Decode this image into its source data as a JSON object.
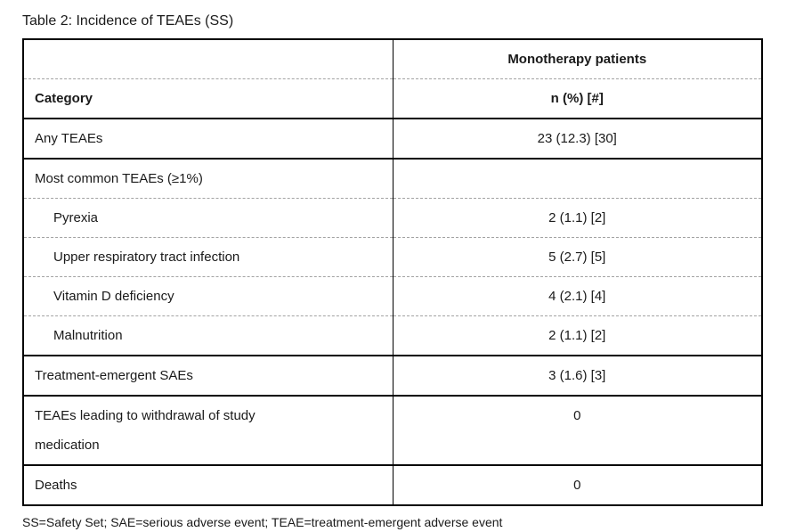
{
  "title": "Table 2: Incidence of TEAEs (SS)",
  "table": {
    "header": {
      "group_label": "Monotherapy patients",
      "category_label": "Category",
      "value_label": "n (%) [#]"
    },
    "rows": [
      {
        "category": "Any TEAEs",
        "value": "23 (12.3) [30]",
        "indent": false,
        "border_bottom": "solid"
      },
      {
        "category": "Most common TEAEs (≥1%)",
        "value": "",
        "indent": false,
        "border_bottom": "dashed"
      },
      {
        "category": "Pyrexia",
        "value": "2 (1.1) [2]",
        "indent": true,
        "border_bottom": "dashed"
      },
      {
        "category": "Upper respiratory tract infection",
        "value": "5 (2.7) [5]",
        "indent": true,
        "border_bottom": "dashed"
      },
      {
        "category": "Vitamin D deficiency",
        "value": "4 (2.1) [4]",
        "indent": true,
        "border_bottom": "dashed"
      },
      {
        "category": "Malnutrition",
        "value": "2 (1.1) [2]",
        "indent": true,
        "border_bottom": "solid"
      },
      {
        "category": "Treatment-emergent SAEs",
        "value": "3 (1.6) [3]",
        "indent": false,
        "border_bottom": "solid"
      },
      {
        "category": "TEAEs leading to withdrawal of study medication",
        "value": "0",
        "indent": false,
        "border_bottom": "solid"
      },
      {
        "category": "Deaths",
        "value": "0",
        "indent": false,
        "border_bottom": "none"
      }
    ]
  },
  "footnote": "SS=Safety Set; SAE=serious adverse event; TEAE=treatment-emergent adverse event"
}
